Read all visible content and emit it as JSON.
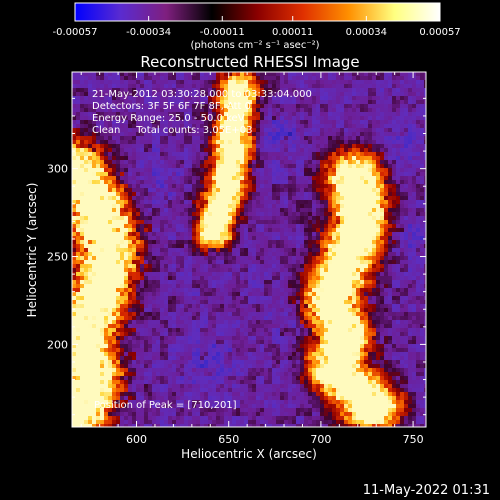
{
  "chart_data": {
    "type": "heatmap",
    "title": "Reconstructed RHESSI Image",
    "xlabel": "Heliocentric X (arcsec)",
    "ylabel": "Heliocentric Y (arcsec)",
    "xlim": [
      565,
      757
    ],
    "ylim": [
      153,
      355
    ],
    "x_ticks": [
      600,
      650,
      700,
      750
    ],
    "y_ticks": [
      200,
      250,
      300
    ],
    "x_tick_labels": [
      "600",
      "650",
      "700",
      "750"
    ],
    "y_tick_labels": [
      "200",
      "250",
      "300"
    ],
    "colorbar": {
      "unit_label": "(photons cm⁻² s⁻¹ asec⁻²)",
      "ticks": [
        -0.00057,
        -0.00034,
        -0.00011,
        0.00011,
        0.00034,
        0.00057
      ],
      "tick_labels": [
        "-0.00057",
        "-0.00034",
        "-0.00011",
        "0.00011",
        "0.00034",
        "0.00057"
      ],
      "range": [
        -0.00057,
        0.00057
      ],
      "colors": [
        "#0000ff",
        "#5a2bd0",
        "#7f1f7f",
        "#000000",
        "#8b0000",
        "#e03000",
        "#ff9000",
        "#ffff80",
        "#ffffff"
      ]
    },
    "info_lines": [
      "21-May-2012 03:30:28.000 to 03:33:04.000",
      "Detectors: 3F 5F 6F 7F 8F, Att 0",
      "Energy Range: 25.0 - 50.0 keV",
      "Clean     Total counts: 3.05E+03"
    ],
    "annotation": "Position of Peak = [710,201]",
    "peak": {
      "x": 710,
      "y": 201
    },
    "emission_ridges": [
      {
        "x": [
          565,
          578,
          585,
          580,
          572,
          575,
          568
        ],
        "y": [
          300,
          280,
          255,
          230,
          205,
          180,
          160
        ]
      },
      {
        "x": [
          655,
          652,
          648,
          642
        ],
        "y": [
          345,
          310,
          285,
          265
        ]
      },
      {
        "x": [
          718,
          722,
          715,
          705,
          712,
          708,
          728
        ],
        "y": [
          295,
          270,
          250,
          225,
          205,
          185,
          165
        ]
      }
    ]
  },
  "footer": {
    "timestamp": "11-May-2022 01:31"
  }
}
